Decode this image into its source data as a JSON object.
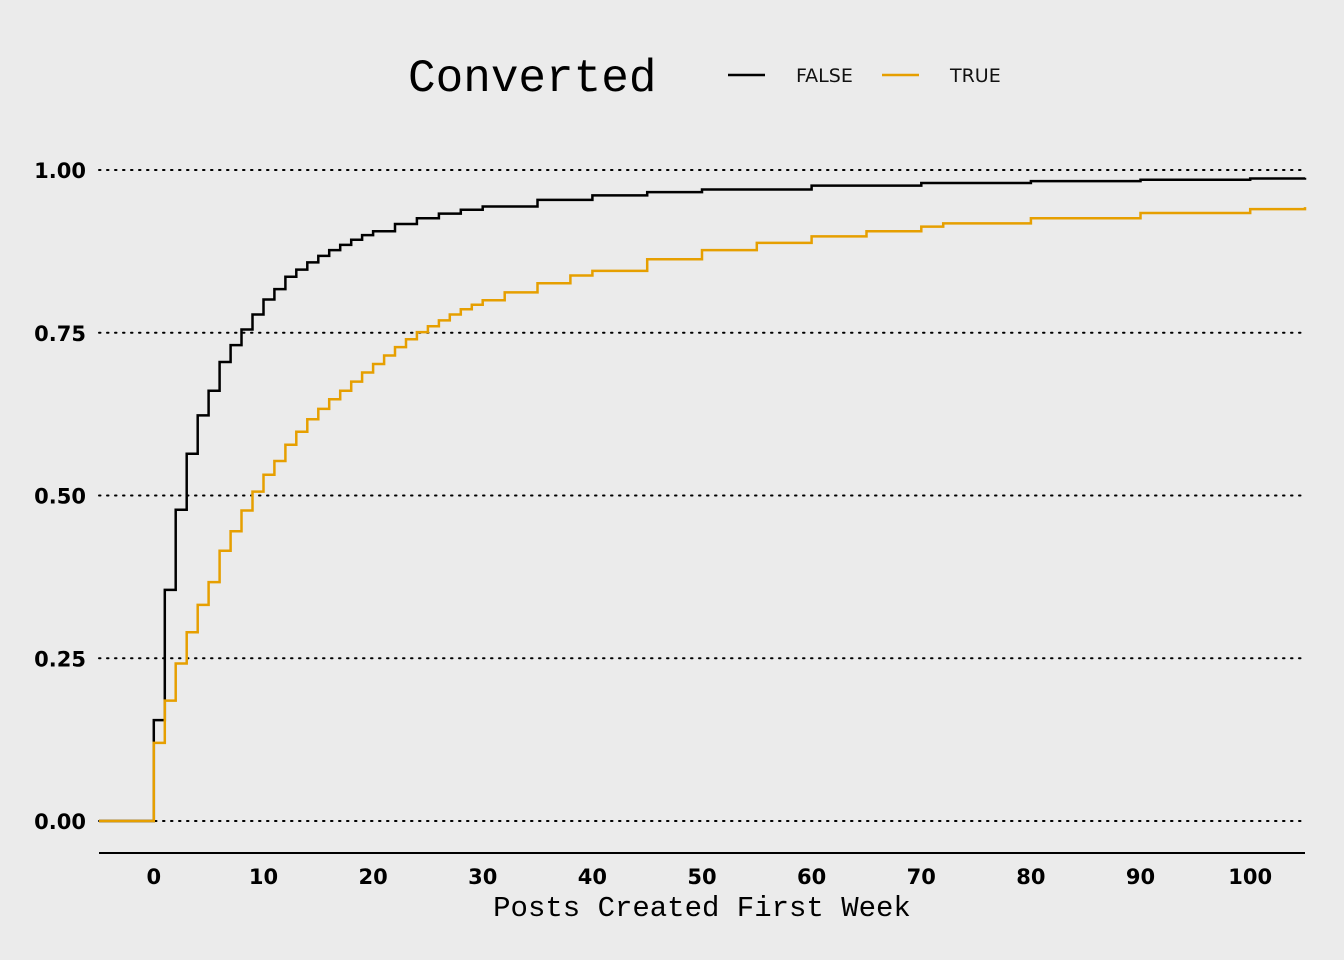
{
  "chart_data": {
    "type": "line",
    "subtype": "empirical cumulative distribution (step)",
    "title": "",
    "xlabel": "Posts Created First Week",
    "ylabel": "",
    "xlim": [
      -5,
      105
    ],
    "ylim": [
      0,
      1
    ],
    "x_ticks": [
      0,
      10,
      20,
      30,
      40,
      50,
      60,
      70,
      80,
      90,
      100
    ],
    "x_tick_labels": [
      "0",
      "10",
      "20",
      "30",
      "40",
      "50",
      "60",
      "70",
      "80",
      "90",
      "100"
    ],
    "y_ticks": [
      0,
      0.25,
      0.5,
      0.75,
      1.0
    ],
    "y_tick_labels": [
      "0.00",
      "0.25",
      "0.50",
      "0.75",
      "1.00"
    ],
    "grid": "horizontal dotted",
    "legend": {
      "title": "Converted",
      "placement": "top",
      "entries": [
        {
          "label": "FALSE",
          "color": "#000000"
        },
        {
          "label": "TRUE",
          "color": "#E69F00"
        }
      ]
    },
    "series": [
      {
        "name": "FALSE",
        "color": "#000000",
        "x": [
          -5,
          0,
          1,
          2,
          3,
          4,
          5,
          6,
          7,
          8,
          9,
          10,
          11,
          12,
          13,
          14,
          15,
          16,
          17,
          18,
          19,
          20,
          22,
          24,
          26,
          28,
          30,
          35,
          40,
          45,
          50,
          60,
          70,
          80,
          90,
          100,
          105
        ],
        "y": [
          0,
          0.155,
          0.355,
          0.478,
          0.564,
          0.623,
          0.661,
          0.705,
          0.731,
          0.755,
          0.778,
          0.801,
          0.817,
          0.836,
          0.847,
          0.858,
          0.868,
          0.877,
          0.885,
          0.893,
          0.9,
          0.906,
          0.917,
          0.926,
          0.933,
          0.939,
          0.944,
          0.954,
          0.961,
          0.966,
          0.97,
          0.976,
          0.98,
          0.983,
          0.985,
          0.987,
          0.988
        ]
      },
      {
        "name": "TRUE",
        "color": "#E69F00",
        "x": [
          -5,
          0,
          1,
          2,
          3,
          4,
          5,
          6,
          7,
          8,
          9,
          10,
          11,
          12,
          13,
          14,
          15,
          16,
          17,
          18,
          19,
          20,
          21,
          22,
          23,
          24,
          25,
          26,
          27,
          28,
          29,
          30,
          32,
          35,
          38,
          40,
          45,
          50,
          55,
          60,
          65,
          70,
          72,
          80,
          90,
          100,
          105
        ],
        "y": [
          0,
          0.12,
          0.185,
          0.242,
          0.29,
          0.332,
          0.367,
          0.415,
          0.445,
          0.477,
          0.506,
          0.532,
          0.553,
          0.578,
          0.598,
          0.617,
          0.633,
          0.648,
          0.661,
          0.675,
          0.689,
          0.702,
          0.715,
          0.728,
          0.74,
          0.751,
          0.76,
          0.769,
          0.778,
          0.786,
          0.793,
          0.8,
          0.812,
          0.826,
          0.838,
          0.845,
          0.863,
          0.877,
          0.888,
          0.898,
          0.906,
          0.913,
          0.918,
          0.926,
          0.934,
          0.94,
          0.943
        ]
      }
    ]
  }
}
